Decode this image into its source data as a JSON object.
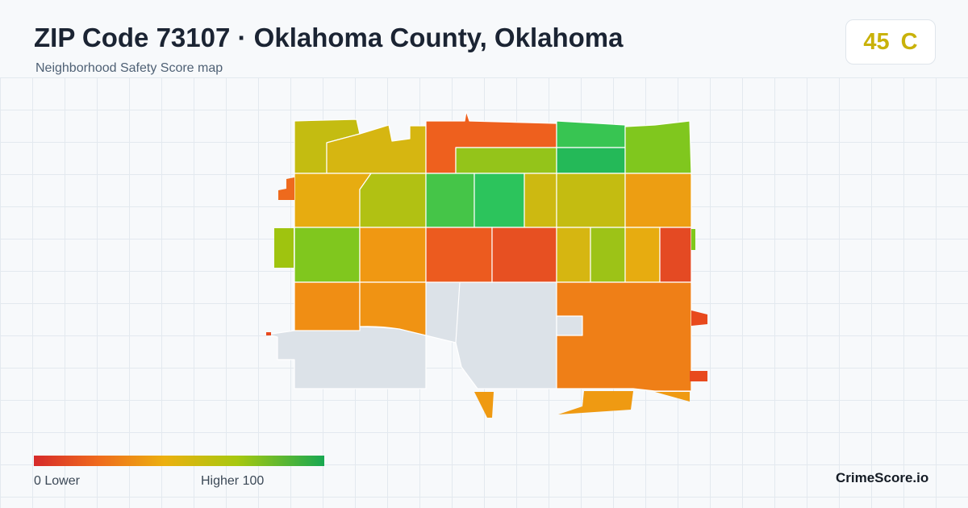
{
  "header": {
    "title": "ZIP Code 73107 · Oklahoma County, Oklahoma",
    "subtitle": "Neighborhood Safety Score map"
  },
  "score": {
    "value": "45",
    "grade": "C",
    "color": "#c9b20a"
  },
  "legend": {
    "min_label": "0  Lower",
    "max_label": "Higher  100",
    "low_color": "#d62a2a",
    "high_color": "#18a851"
  },
  "footer": {
    "brand": "CrimeScore.io"
  },
  "map": {
    "no_data_color": "#dce2e8",
    "tracts": [
      {
        "name": "nw-1",
        "score": 62
      },
      {
        "name": "nw-2",
        "score": 58
      },
      {
        "name": "n-1",
        "score": 20
      },
      {
        "name": "n-2",
        "score": 72
      },
      {
        "name": "n-3",
        "score": 88
      },
      {
        "name": "n-4",
        "score": 94
      },
      {
        "name": "ne-1",
        "score": 76
      },
      {
        "name": "w-1",
        "score": 52
      },
      {
        "name": "w-2",
        "score": 66
      },
      {
        "name": "c-1",
        "score": 86
      },
      {
        "name": "c-2",
        "score": 90
      },
      {
        "name": "c-3",
        "score": 60
      },
      {
        "name": "c-4",
        "score": 62
      },
      {
        "name": "e-1",
        "score": 45
      },
      {
        "name": "sw-1",
        "score": 76
      },
      {
        "name": "sw-2",
        "score": 42
      },
      {
        "name": "s-1",
        "score": 18
      },
      {
        "name": "s-2",
        "score": 14
      },
      {
        "name": "s-3",
        "score": 58
      },
      {
        "name": "s-4",
        "score": 70
      },
      {
        "name": "s-5",
        "score": 52
      },
      {
        "name": "se-1",
        "score": 12
      },
      {
        "name": "b-1",
        "score": 38
      },
      {
        "name": "b-2",
        "score": 40
      },
      {
        "name": "b-3",
        "score": 32
      }
    ]
  }
}
